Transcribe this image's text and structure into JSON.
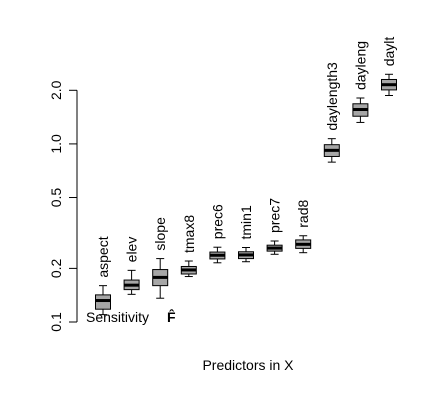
{
  "chart_data": {
    "type": "boxplot",
    "title": "",
    "xlabel": "Predictors in X",
    "ylabel": "",
    "annotation": "Sensitivity",
    "annotation_symbol": "F̂",
    "y_scale": "log",
    "ylim": [
      0.1,
      2.6
    ],
    "grid": false,
    "yticks": [
      0.1,
      0.2,
      0.5,
      1.0,
      2.0
    ],
    "ytick_labels": [
      "0.1",
      "0.2",
      "0.5",
      "1.0",
      "2.0"
    ],
    "categories": [
      "aspect",
      "elev",
      "slope",
      "tmax8",
      "prec6",
      "tmin1",
      "prec7",
      "rad8",
      "daylength3",
      "dayleng",
      "daylt"
    ],
    "boxes": [
      {
        "category": "aspect",
        "whisker_low": 0.11,
        "q1": 0.118,
        "median": 0.132,
        "q3": 0.142,
        "whisker_high": 0.16
      },
      {
        "category": "elev",
        "whisker_low": 0.143,
        "q1": 0.152,
        "median": 0.161,
        "q3": 0.172,
        "whisker_high": 0.195
      },
      {
        "category": "slope",
        "whisker_low": 0.136,
        "q1": 0.16,
        "median": 0.178,
        "q3": 0.197,
        "whisker_high": 0.227
      },
      {
        "category": "tmax8",
        "whisker_low": 0.18,
        "q1": 0.186,
        "median": 0.196,
        "q3": 0.205,
        "whisker_high": 0.22
      },
      {
        "category": "prec6",
        "whisker_low": 0.215,
        "q1": 0.226,
        "median": 0.237,
        "q3": 0.247,
        "whisker_high": 0.263
      },
      {
        "category": "tmin1",
        "whisker_low": 0.218,
        "q1": 0.227,
        "median": 0.238,
        "q3": 0.248,
        "whisker_high": 0.262
      },
      {
        "category": "prec7",
        "whisker_low": 0.24,
        "q1": 0.25,
        "median": 0.26,
        "q3": 0.27,
        "whisker_high": 0.285
      },
      {
        "category": "rad8",
        "whisker_low": 0.245,
        "q1": 0.259,
        "median": 0.273,
        "q3": 0.289,
        "whisker_high": 0.305
      },
      {
        "category": "daylength3",
        "whisker_low": 0.79,
        "q1": 0.85,
        "median": 0.92,
        "q3": 0.99,
        "whisker_high": 1.07
      },
      {
        "category": "dayleng",
        "whisker_low": 1.32,
        "q1": 1.43,
        "median": 1.56,
        "q3": 1.68,
        "whisker_high": 1.81
      },
      {
        "category": "daylt",
        "whisker_low": 1.87,
        "q1": 2.01,
        "median": 2.15,
        "q3": 2.3,
        "whisker_high": 2.46
      }
    ]
  }
}
